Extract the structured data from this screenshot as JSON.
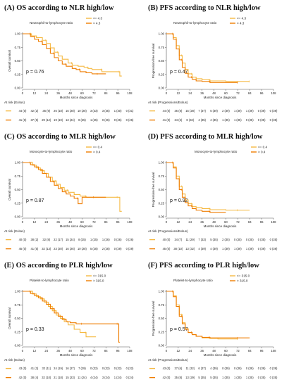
{
  "colors": {
    "high": "#ef7d00",
    "low": "#f5b942",
    "axis": "#555555"
  },
  "chart_data": [
    {
      "type": "line",
      "panel": "(A)",
      "title": "OS according to NLR high/low",
      "legend_title": "Neutrophil-to-lymphocyte ratio",
      "legend_position": "top-center",
      "ylabel": "Overall survival",
      "xlabel": "Months since diagnosis",
      "xlim": [
        0,
        108
      ],
      "ylim": [
        0,
        1
      ],
      "xticks": [
        "0",
        "12",
        "24",
        "36",
        "48",
        "60",
        "72",
        "84",
        "96",
        "108"
      ],
      "yticks": [
        "0.00",
        "0.25",
        "0.50",
        "0.75",
        "1.00"
      ],
      "p_value": "p = 0.76",
      "risk_label": "At risk (Exitus)",
      "series": [
        {
          "name": "<= 4.3",
          "color": "low",
          "x": [
            0,
            6,
            9,
            14,
            20,
            24,
            28,
            32,
            36,
            40,
            46,
            50,
            56,
            62,
            66,
            70,
            76,
            80,
            84,
            96,
            98,
            100
          ],
          "y": [
            1,
            1,
            0.96,
            0.93,
            0.88,
            0.82,
            0.74,
            0.66,
            0.59,
            0.53,
            0.46,
            0.42,
            0.4,
            0.38,
            0.36,
            0.34,
            0.34,
            0.3,
            0.3,
            0.3,
            0.22,
            0.22
          ],
          "risk": [
            "44 (0)",
            "42 (2)",
            "35 (9)",
            "26 (18)",
            "16 (28)",
            "10 (28)",
            "3 (33)",
            "3 (35)",
            "1 (30)",
            "0 (31)"
          ]
        },
        {
          "name": "> 4.3",
          "color": "high",
          "x": [
            0,
            5,
            8,
            12,
            16,
            20,
            24,
            28,
            32,
            36,
            40,
            44,
            50,
            54,
            58,
            64,
            70,
            76,
            84
          ],
          "y": [
            1,
            1,
            0.95,
            0.9,
            0.86,
            0.8,
            0.73,
            0.64,
            0.56,
            0.5,
            0.44,
            0.4,
            0.36,
            0.34,
            0.3,
            0.28,
            0.26,
            0.26,
            0.26
          ],
          "risk": [
            "41 (0)",
            "37 (5)",
            "29 (12)",
            "19 (19)",
            "13 (24)",
            "8 (25)",
            "1 (25)",
            "0 (26)",
            "0 (26)",
            "0 (26)"
          ]
        }
      ]
    },
    {
      "type": "line",
      "panel": "(B)",
      "title": "PFS according to NLR high/low",
      "legend_title": "Neutrophil-to-lymphocyte ratio",
      "legend_position": "top-center",
      "ylabel": "Progression-free survival",
      "xlabel": "Months since diagnosis",
      "xlim": [
        0,
        108
      ],
      "ylim": [
        0,
        1
      ],
      "xticks": [
        "0",
        "12",
        "24",
        "36",
        "48",
        "60",
        "72",
        "84",
        "96",
        "108"
      ],
      "yticks": [
        "0.00",
        "0.25",
        "0.50",
        "0.75",
        "1.00"
      ],
      "p_value": "p = 0.47",
      "risk_label": "At risk (Progressions/Exitus)",
      "series": [
        {
          "name": "<= 4.3",
          "color": "low",
          "x": [
            0,
            4,
            7,
            10,
            13,
            16,
            19,
            22,
            26,
            30,
            36,
            44,
            52,
            60,
            84
          ],
          "y": [
            1,
            1,
            0.93,
            0.78,
            0.6,
            0.46,
            0.34,
            0.26,
            0.2,
            0.17,
            0.15,
            0.13,
            0.13,
            0.12,
            0.12
          ],
          "risk": [
            "44 (0)",
            "36 (8)",
            "15 (28)",
            "7 (37)",
            "5 (39)",
            "2 (39)",
            "1 (39)",
            "1 (39)",
            "0 (39)",
            "0 (39)"
          ]
        },
        {
          "name": "> 4.3",
          "color": "high",
          "x": [
            0,
            4,
            7,
            10,
            13,
            16,
            19,
            22,
            26,
            30,
            36,
            44,
            52,
            60,
            72
          ],
          "y": [
            1,
            1,
            0.9,
            0.72,
            0.52,
            0.38,
            0.27,
            0.2,
            0.16,
            0.13,
            0.12,
            0.1,
            0.1,
            0.1,
            0.1
          ],
          "risk": [
            "41 (0)",
            "34 (6)",
            "8 (32)",
            "4 (35)",
            "4 (35)",
            "1 (35)",
            "1 (35)",
            "0 (35)",
            "0 (35)",
            "0 (35)"
          ]
        }
      ]
    },
    {
      "type": "line",
      "panel": "(C)",
      "title": "OS according to MLR high/low",
      "legend_title": "Monocyte-to-lymphocyte ratio",
      "legend_position": "top-center",
      "ylabel": "Overall survival",
      "xlabel": "Months since diagnosis",
      "xlim": [
        0,
        108
      ],
      "ylim": [
        0,
        1
      ],
      "xticks": [
        "0",
        "12",
        "24",
        "36",
        "48",
        "60",
        "72",
        "84",
        "96",
        "108"
      ],
      "yticks": [
        "0.00",
        "0.25",
        "0.50",
        "0.75",
        "1.00"
      ],
      "p_value": "p = 0.87",
      "risk_label": "At risk (Exitus)",
      "series": [
        {
          "name": "<= 0.4",
          "color": "low",
          "x": [
            0,
            6,
            10,
            14,
            18,
            22,
            26,
            30,
            34,
            38,
            42,
            46,
            52,
            58,
            64,
            70,
            84,
            96,
            98,
            100
          ],
          "y": [
            1,
            1,
            0.95,
            0.9,
            0.85,
            0.8,
            0.73,
            0.66,
            0.6,
            0.54,
            0.49,
            0.45,
            0.41,
            0.38,
            0.36,
            0.36,
            0.36,
            0.36,
            0.1,
            0.1
          ],
          "risk": [
            "40 (0)",
            "38 (2)",
            "32 (8)",
            "22 (17)",
            "15 (24)",
            "8 (25)",
            "1 (25)",
            "1 (26)",
            "0 (26)",
            "0 (26)"
          ]
        },
        {
          "name": "> 0.4",
          "color": "high",
          "x": [
            0,
            5,
            8,
            12,
            16,
            20,
            24,
            28,
            32,
            36,
            40,
            44,
            48,
            52,
            56,
            60,
            66,
            72,
            84
          ],
          "y": [
            1,
            1,
            0.96,
            0.92,
            0.87,
            0.8,
            0.73,
            0.65,
            0.58,
            0.52,
            0.46,
            0.42,
            0.38,
            0.34,
            0.24,
            0.36,
            0.36,
            0.36,
            0.36
          ],
          "risk": [
            "45 (0)",
            "41 (5)",
            "32 (13)",
            "23 (20)",
            "16 (26)",
            "10 (28)",
            "5 (28)",
            "2 (28)",
            "0 (29)",
            "0 (29)"
          ]
        }
      ]
    },
    {
      "type": "line",
      "panel": "(D)",
      "title": "PFS according to MLR high/low",
      "legend_title": "Monocyte-to-lymphocyte ratio",
      "legend_position": "top-right",
      "ylabel": "Progression-free survival",
      "xlabel": "Months since diagnosis",
      "xlim": [
        0,
        108
      ],
      "ylim": [
        0,
        1
      ],
      "xticks": [
        "0",
        "12",
        "24",
        "36",
        "48",
        "60",
        "72",
        "84",
        "96",
        "108"
      ],
      "yticks": [
        "0.00",
        "0.25",
        "0.50",
        "0.75",
        "1.00"
      ],
      "p_value": "p = 0.92",
      "risk_label": "At risk (Progressions/Exitus)",
      "series": [
        {
          "name": "<= 0.4",
          "color": "low",
          "x": [
            0,
            4,
            7,
            10,
            13,
            16,
            19,
            22,
            26,
            30,
            36,
            44,
            52,
            60,
            72,
            84
          ],
          "y": [
            1,
            1,
            0.92,
            0.75,
            0.56,
            0.42,
            0.31,
            0.24,
            0.19,
            0.17,
            0.15,
            0.13,
            0.13,
            0.12,
            0.12,
            0.12
          ],
          "risk": [
            "40 (0)",
            "34 (7)",
            "11 (29)",
            "7 (33)",
            "5 (35)",
            "2 (35)",
            "0 (35)",
            "0 (35)",
            "0 (35)",
            "0 (35)"
          ]
        },
        {
          "name": "> 0.4",
          "color": "high",
          "x": [
            0,
            4,
            7,
            10,
            13,
            16,
            19,
            22,
            26,
            30,
            36,
            44,
            52,
            60
          ],
          "y": [
            1,
            1,
            0.9,
            0.7,
            0.5,
            0.36,
            0.26,
            0.2,
            0.15,
            0.12,
            0.1,
            0.08,
            0.08,
            0.08
          ],
          "risk": [
            "45 (0)",
            "38 (10)",
            "13 (32)",
            "4 (39)",
            "4 (39)",
            "1 (39)",
            "1 (39)",
            "1 (39)",
            "0 (39)",
            "0 (39)"
          ]
        }
      ]
    },
    {
      "type": "line",
      "panel": "(E)",
      "title": "OS according to PLR high/low",
      "legend_title": "Platelet-to-lymphocyte ratio",
      "legend_position": "top-center",
      "ylabel": "Overall survival",
      "xlabel": "Months since diagnosis",
      "xlim": [
        0,
        108
      ],
      "ylim": [
        0,
        1
      ],
      "xticks": [
        "0",
        "12",
        "24",
        "36",
        "48",
        "60",
        "72",
        "84",
        "96",
        "108"
      ],
      "yticks": [
        "0.00",
        "0.25",
        "0.50",
        "0.75",
        "1.00"
      ],
      "p_value": "p = 0.33",
      "risk_label": "At risk (Exitus)",
      "series": [
        {
          "name": "<= 315.0",
          "color": "low",
          "x": [
            0,
            6,
            10,
            14,
            18,
            22,
            26,
            30,
            34,
            38,
            42,
            46,
            52,
            58,
            64,
            70,
            74
          ],
          "y": [
            1,
            1,
            0.95,
            0.9,
            0.86,
            0.8,
            0.72,
            0.64,
            0.56,
            0.5,
            0.44,
            0.38,
            0.3,
            0.24,
            0.16,
            0.16,
            0.16
          ],
          "risk": [
            "43 (0)",
            "41 (3)",
            "32 (11)",
            "24 (19)",
            "16 (27)",
            "7 (29)",
            "0 (32)",
            "0 (32)",
            "0 (32)",
            "0 (32)"
          ]
        },
        {
          "name": "> 315.0",
          "color": "high",
          "x": [
            0,
            5,
            8,
            12,
            16,
            20,
            24,
            28,
            32,
            36,
            40,
            44,
            48,
            54,
            60,
            72,
            84,
            96,
            97,
            98
          ],
          "y": [
            1,
            1,
            0.96,
            0.92,
            0.88,
            0.82,
            0.76,
            0.68,
            0.6,
            0.54,
            0.48,
            0.44,
            0.42,
            0.4,
            0.4,
            0.4,
            0.4,
            0.4,
            0.06,
            0.06
          ],
          "risk": [
            "42 (0)",
            "38 (4)",
            "32 (10)",
            "21 (18)",
            "15 (23)",
            "11 (24)",
            "4 (24)",
            "3 (24)",
            "1 (24)",
            "0 (24)"
          ]
        }
      ]
    },
    {
      "type": "line",
      "panel": "(F)",
      "title": "PFS according to PLR high/low",
      "legend_title": "Platelet-to-lymphocyte ratio",
      "legend_position": "top-center",
      "ylabel": "Progression-free survival",
      "xlabel": "Months since diagnosis",
      "xlim": [
        0,
        108
      ],
      "ylim": [
        0,
        1
      ],
      "xticks": [
        "0",
        "12",
        "24",
        "36",
        "48",
        "60",
        "72",
        "84",
        "96",
        "108"
      ],
      "yticks": [
        "0.00",
        "0.25",
        "0.50",
        "0.75",
        "1.00"
      ],
      "p_value": "p = 0.57",
      "risk_label": "At risk (Progressions/Exitus)",
      "series": [
        {
          "name": "<= 315.0",
          "color": "low",
          "x": [
            0,
            4,
            7,
            10,
            13,
            16,
            19,
            22,
            26,
            30,
            36,
            44,
            52,
            60,
            72
          ],
          "y": [
            1,
            1,
            0.92,
            0.75,
            0.57,
            0.42,
            0.31,
            0.24,
            0.2,
            0.17,
            0.14,
            0.13,
            0.12,
            0.12,
            0.12
          ],
          "risk": [
            "43 (0)",
            "37 (6)",
            "11 (32)",
            "6 (37)",
            "4 (39)",
            "0 (39)",
            "0 (39)",
            "0 (39)",
            "0 (39)",
            "0 (39)"
          ]
        },
        {
          "name": "> 315.0",
          "color": "high",
          "x": [
            0,
            4,
            7,
            10,
            13,
            16,
            19,
            22,
            26,
            30,
            36,
            44,
            52,
            60,
            72,
            84
          ],
          "y": [
            1,
            1,
            0.9,
            0.72,
            0.54,
            0.4,
            0.3,
            0.24,
            0.2,
            0.17,
            0.15,
            0.14,
            0.14,
            0.14,
            0.14,
            0.14
          ],
          "risk": [
            "42 (0)",
            "35 (8)",
            "13 (29)",
            "5 (35)",
            "5 (35)",
            "1 (35)",
            "1 (35)",
            "1 (35)",
            "0 (35)",
            "0 (35)"
          ]
        }
      ]
    }
  ]
}
